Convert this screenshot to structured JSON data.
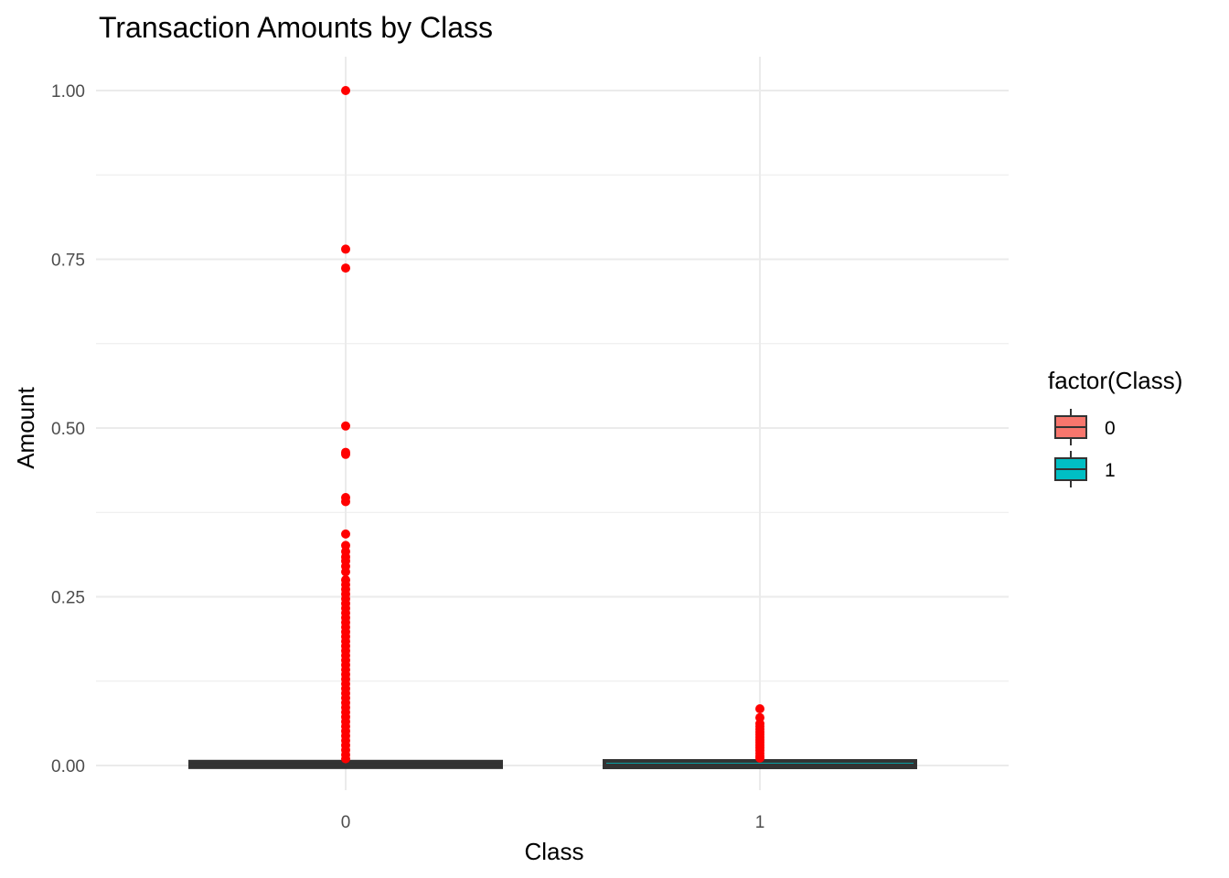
{
  "chart_data": {
    "type": "box",
    "title": "Transaction Amounts by Class",
    "xlabel": "Class",
    "ylabel": "Amount",
    "categories": [
      "0",
      "1"
    ],
    "ylim": [
      -0.035,
      1.05
    ],
    "yticks": [
      0.0,
      0.25,
      0.5,
      0.75,
      1.0
    ],
    "ytick_labels": [
      "0.00",
      "0.25",
      "0.50",
      "0.75",
      "1.00"
    ],
    "grid": true,
    "legend": {
      "title": "factor(Class)",
      "placement": "right",
      "entries": [
        {
          "label": "0",
          "color": "#F8766D"
        },
        {
          "label": "1",
          "color": "#00BFC4"
        }
      ]
    },
    "boxes": [
      {
        "category": "0",
        "min": 0.0,
        "q1": 0.0002,
        "median": 0.0009,
        "q3": 0.003,
        "max": 0.0073
      },
      {
        "category": "1",
        "min": 0.0,
        "q1": 0.0,
        "median": 0.0004,
        "q3": 0.0041,
        "max": 0.01
      }
    ],
    "outliers": [
      {
        "category": "0",
        "values": [
          1.0,
          0.765,
          0.737,
          0.503,
          0.464,
          0.461,
          0.397,
          0.391,
          0.343,
          0.326,
          0.317,
          0.309,
          0.303,
          0.295,
          0.287,
          0.275,
          0.268,
          0.261,
          0.254,
          0.247,
          0.24,
          0.233,
          0.226,
          0.219,
          0.212,
          0.205,
          0.198,
          0.191,
          0.184,
          0.177,
          0.17,
          0.163,
          0.156,
          0.149,
          0.142,
          0.135,
          0.128,
          0.121,
          0.114,
          0.107,
          0.1,
          0.093,
          0.086,
          0.079,
          0.072,
          0.065,
          0.058,
          0.051,
          0.044,
          0.037,
          0.03,
          0.023,
          0.016,
          0.01
        ]
      },
      {
        "category": "1",
        "values": [
          0.084,
          0.071,
          0.062,
          0.058,
          0.054,
          0.05,
          0.046,
          0.042,
          0.038,
          0.034,
          0.03,
          0.026,
          0.022,
          0.018,
          0.014,
          0.011
        ]
      }
    ],
    "colors": {
      "outlier": "#FF0000",
      "box_line": "#333333",
      "grid": "#EBEBEB"
    }
  }
}
